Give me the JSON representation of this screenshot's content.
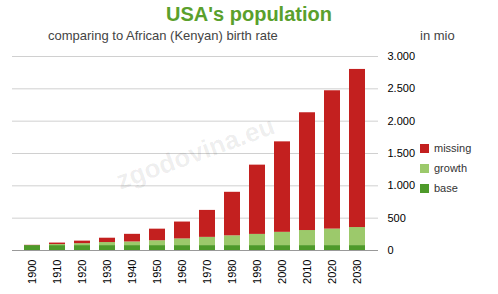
{
  "chart_data": {
    "type": "bar",
    "title": "USA's population",
    "subtitle": "comparing to African (Kenyan) birth rate",
    "ylabel": "in mio",
    "annotation": "zgodovina.eu",
    "stacked": true,
    "grid": true,
    "legend": "right",
    "categories": [
      "1900",
      "1910",
      "1920",
      "1930",
      "1940",
      "1950",
      "1960",
      "1970",
      "1980",
      "1990",
      "2000",
      "2010",
      "2020",
      "2030"
    ],
    "series": [
      {
        "name": "base",
        "color": "#4e9a2a",
        "values": [
          76,
          76,
          76,
          76,
          76,
          76,
          76,
          76,
          76,
          76,
          76,
          76,
          76,
          76
        ]
      },
      {
        "name": "growth",
        "color": "#9cc96b",
        "values": [
          0,
          16,
          30,
          47,
          56,
          75,
          103,
          127,
          151,
          173,
          205,
          233,
          255,
          279
        ]
      },
      {
        "name": "missing",
        "color": "#c3201f",
        "values": [
          4,
          23,
          39,
          67,
          118,
          179,
          261,
          417,
          673,
          1071,
          1399,
          1821,
          2139,
          2445
        ]
      }
    ],
    "ylim": [
      0,
      3000
    ],
    "yticks": [
      0,
      500,
      {
        "value": 1000,
        "label": "1.000"
      },
      {
        "value": 1500,
        "label": "1.500"
      },
      {
        "value": 2000,
        "label": "2.000"
      },
      {
        "value": 2500,
        "label": "2.500"
      },
      {
        "value": 3000,
        "label": "3.000"
      }
    ]
  }
}
